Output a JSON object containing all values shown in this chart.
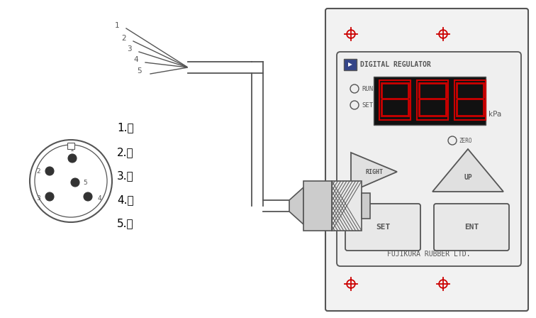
{
  "bg_color": "#ffffff",
  "line_color": "#555555",
  "red_color": "#cc0000",
  "color_labels": [
    "1.棕",
    "2.白",
    "3.蓝",
    "4.黑",
    "5.灰"
  ],
  "panel_title": "DIGITAL REGULATOR",
  "brand": "FUJIKURA RUBBER LTD.",
  "kpa_label": "kPa",
  "run_label": "RUN",
  "set_label": "SET",
  "zero_label": "ZERO",
  "right_label": "RIGHT",
  "up_label": "UP",
  "set_btn": "SET",
  "ent_btn": "ENT"
}
